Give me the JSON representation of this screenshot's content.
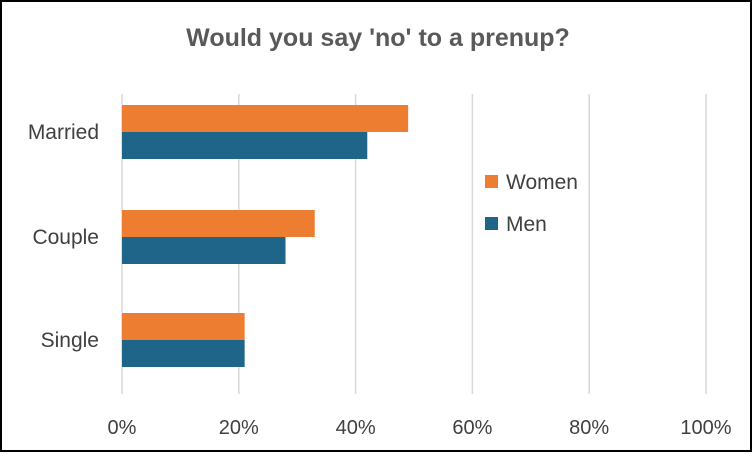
{
  "chart_data": {
    "type": "bar",
    "orientation": "horizontal",
    "title": "Would you say 'no' to a prenup?",
    "categories": [
      "Married",
      "Couple",
      "Single"
    ],
    "series": [
      {
        "name": "Women",
        "color": "#ED7D31",
        "values": [
          49,
          33,
          21
        ]
      },
      {
        "name": "Men",
        "color": "#1F6589",
        "values": [
          42,
          28,
          21
        ]
      }
    ],
    "xlim": [
      0,
      100
    ],
    "xticks": [
      "0%",
      "20%",
      "40%",
      "60%",
      "80%",
      "100%"
    ],
    "xtick_values": [
      0,
      20,
      40,
      60,
      80,
      100
    ],
    "grid": true,
    "legend_position": "right"
  }
}
